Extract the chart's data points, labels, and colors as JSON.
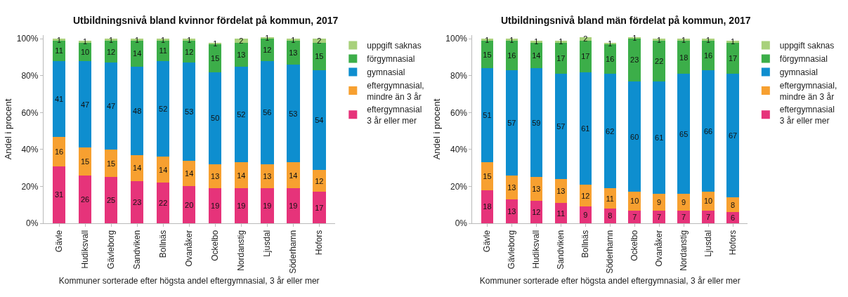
{
  "chart_data": [
    {
      "type": "bar",
      "stacked": true,
      "title": "Utbildningsnivå bland kvinnor fördelat på kommun, 2017",
      "xlabel": "Kommuner sorterade efter högsta andel eftergymnasial, 3 år eller mer",
      "ylabel": "Andel i procent",
      "categories": [
        "Gävle",
        "Hudiksvall",
        "Gävleborg",
        "Sandviken",
        "Bollnäs",
        "Ovanåker",
        "Ockelbo",
        "Nordanstig",
        "Ljusdal",
        "Söderhamn",
        "Hofors"
      ],
      "ylim": [
        0,
        102
      ],
      "yticks": [
        {
          "value": 0,
          "label": "0%"
        },
        {
          "value": 20,
          "label": "20%"
        },
        {
          "value": 40,
          "label": "40%"
        },
        {
          "value": 60,
          "label": "60%"
        },
        {
          "value": 80,
          "label": "80%"
        },
        {
          "value": 100,
          "label": "100%"
        }
      ],
      "grid": false,
      "legend": "right",
      "data_labels": true,
      "series": [
        {
          "name": "eftergymnasial 3 år eller mer",
          "color": "#e6337a",
          "values": [
            31,
            26,
            25,
            23,
            22,
            20,
            19,
            19,
            19,
            19,
            17
          ]
        },
        {
          "name": "eftergymnasial, mindre än 3 år",
          "color": "#f7a030",
          "values": [
            16,
            15,
            15,
            14,
            14,
            14,
            13,
            14,
            13,
            14,
            12
          ]
        },
        {
          "name": "gymnasial",
          "color": "#0e8ecf",
          "values": [
            41,
            47,
            47,
            48,
            52,
            53,
            50,
            52,
            56,
            53,
            54
          ]
        },
        {
          "name": "förgymnasial",
          "color": "#3cae49",
          "values": [
            11,
            10,
            12,
            14,
            11,
            12,
            15,
            13,
            12,
            13,
            15
          ]
        },
        {
          "name": "uppgift saknas",
          "color": "#a8d17b",
          "values": [
            1,
            1,
            1,
            1,
            1,
            1,
            1,
            2,
            1,
            1,
            2
          ]
        }
      ]
    },
    {
      "type": "bar",
      "stacked": true,
      "title": "Utbildningsnivå bland män fördelat på kommun, 2017",
      "xlabel": "Kommuner sorterade efter högsta andel eftergymnasial, 3 år eller mer",
      "ylabel": "Andel i procent",
      "categories": [
        "Gävle",
        "Gävleborg",
        "Hudiksvall",
        "Sandviken",
        "Bollnäs",
        "Söderhamn",
        "Ockelbo",
        "Ovanåker",
        "Nordanstig",
        "Ljusdal",
        "Hofors"
      ],
      "ylim": [
        0,
        102
      ],
      "yticks": [
        {
          "value": 0,
          "label": "0%"
        },
        {
          "value": 20,
          "label": "20%"
        },
        {
          "value": 40,
          "label": "40%"
        },
        {
          "value": 60,
          "label": "60%"
        },
        {
          "value": 80,
          "label": "80%"
        },
        {
          "value": 100,
          "label": "100%"
        }
      ],
      "grid": false,
      "legend": "right",
      "data_labels": true,
      "series": [
        {
          "name": "eftergymnasial 3 år eller mer",
          "color": "#e6337a",
          "values": [
            18,
            13,
            12,
            11,
            9,
            8,
            7,
            7,
            7,
            7,
            6
          ]
        },
        {
          "name": "eftergymnasial, mindre än 3 år",
          "color": "#f7a030",
          "values": [
            15,
            13,
            13,
            13,
            12,
            11,
            10,
            9,
            9,
            10,
            8
          ]
        },
        {
          "name": "gymnasial",
          "color": "#0e8ecf",
          "values": [
            51,
            57,
            59,
            57,
            61,
            62,
            60,
            61,
            65,
            66,
            67
          ]
        },
        {
          "name": "förgymnasial",
          "color": "#3cae49",
          "values": [
            15,
            16,
            14,
            17,
            17,
            16,
            23,
            22,
            18,
            16,
            17
          ]
        },
        {
          "name": "uppgift saknas",
          "color": "#a8d17b",
          "values": [
            1,
            1,
            1,
            1,
            2,
            1,
            1,
            1,
            1,
            1,
            1
          ]
        }
      ]
    }
  ]
}
